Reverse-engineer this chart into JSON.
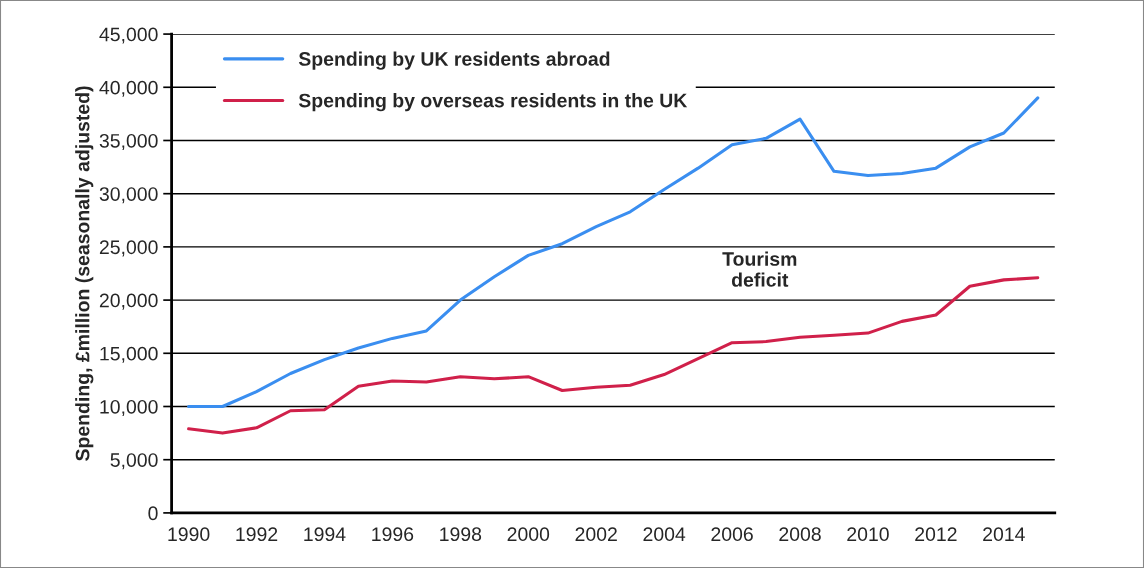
{
  "chart_data": {
    "type": "line",
    "ylabel": "Spending, £million (seasonally adjusted)",
    "x": [
      1990,
      1991,
      1992,
      1993,
      1994,
      1995,
      1996,
      1997,
      1998,
      1999,
      2000,
      2001,
      2002,
      2003,
      2004,
      2005,
      2006,
      2007,
      2008,
      2009,
      2010,
      2011,
      2012,
      2013,
      2014,
      2015
    ],
    "series": [
      {
        "name": "Spending by UK residents abroad",
        "color": "#3a8ef0",
        "values": [
          10000,
          10000,
          11400,
          13100,
          14400,
          15500,
          16400,
          17100,
          20000,
          22200,
          24200,
          25300,
          26900,
          28300,
          30400,
          32400,
          34600,
          35200,
          37000,
          32100,
          31700,
          31900,
          32400,
          34400,
          35700,
          39000
        ]
      },
      {
        "name": "Spending by overseas residents in the UK",
        "color": "#d0204a",
        "values": [
          7900,
          7500,
          8000,
          9600,
          9700,
          11900,
          12400,
          12300,
          12800,
          12600,
          12800,
          11500,
          11800,
          12000,
          13000,
          14500,
          16000,
          16100,
          16500,
          16700,
          16900,
          18000,
          18600,
          21300,
          21900,
          22100
        ]
      }
    ],
    "xlim": [
      1989.5,
      2015.5
    ],
    "xticks": [
      1990,
      1992,
      1994,
      1996,
      1998,
      2000,
      2002,
      2004,
      2006,
      2008,
      2010,
      2012,
      2014
    ],
    "ylim": [
      0,
      45000
    ],
    "yticks": [
      0,
      {
        "value": 5000,
        "label": "5,000"
      },
      {
        "value": 10000,
        "label": "10,000"
      },
      {
        "value": 15000,
        "label": "15,000"
      },
      {
        "value": 20000,
        "label": "20,000"
      },
      {
        "value": 25000,
        "label": "25,000"
      },
      {
        "value": 30000,
        "label": "30,000"
      },
      {
        "value": 35000,
        "label": "35,000"
      },
      {
        "value": 40000,
        "label": "40,000"
      },
      {
        "value": 45000,
        "label": "45,000"
      }
    ],
    "annotations": [
      "Tourism\ndeficit"
    ],
    "grid": "y",
    "legend": "top left",
    "marker": "none",
    "line_style": "solid"
  }
}
